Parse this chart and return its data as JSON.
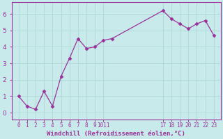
{
  "x": [
    0,
    1,
    2,
    3,
    4,
    5,
    6,
    7,
    8,
    9,
    10,
    11,
    17,
    18,
    19,
    20,
    21,
    22,
    23
  ],
  "y": [
    1.0,
    0.4,
    0.2,
    1.3,
    0.4,
    2.2,
    3.3,
    4.5,
    3.9,
    4.0,
    4.4,
    4.5,
    6.2,
    5.7,
    5.4,
    5.1,
    5.4,
    5.6,
    4.7
  ],
  "line_color": "#993399",
  "marker_color": "#993399",
  "bg_color": "#c8eaea",
  "grid_color": "#b0d8d8",
  "axis_color": "#993399",
  "tick_color": "#993399",
  "xlabel": "Windchill (Refroidissement éolien,°C)",
  "yticks": [
    0,
    1,
    2,
    3,
    4,
    5,
    6
  ],
  "ylim": [
    -0.4,
    6.7
  ],
  "xlim": [
    -0.8,
    23.8
  ],
  "xtick_positions": [
    0,
    1,
    2,
    3,
    4,
    5,
    6,
    7,
    8,
    9,
    10,
    17,
    18,
    19,
    20,
    21,
    22,
    23
  ],
  "xtick_labels": [
    "0",
    "1",
    "2",
    "3",
    "4",
    "5",
    "6",
    "7",
    "8",
    "9",
    "1011",
    "17",
    "18",
    "19",
    "20",
    "21",
    "22",
    "23"
  ]
}
